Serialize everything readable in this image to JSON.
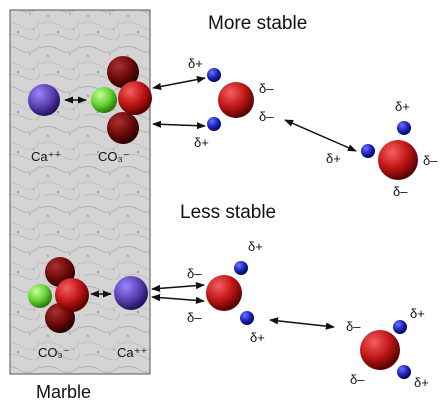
{
  "labels": {
    "more_stable": "More stable",
    "less_stable": "Less stable",
    "marble": "Marble",
    "ca_top": "Ca⁺⁺",
    "co3_top": "CO₃⁻",
    "co3_bottom": "CO₃⁻",
    "ca_bottom": "Ca⁺⁺",
    "delta_plus": "δ+",
    "delta_minus": "δ–"
  },
  "colors": {
    "marble_fill": "#d6d6d6",
    "calcium": "#5a3fb0",
    "oxygen": "#c41818",
    "hydrogen": "#1a22b8",
    "carbon": "#6fd63a",
    "arrow": "#111111"
  },
  "icons": {
    "arrow": "double-headed-arrow"
  }
}
